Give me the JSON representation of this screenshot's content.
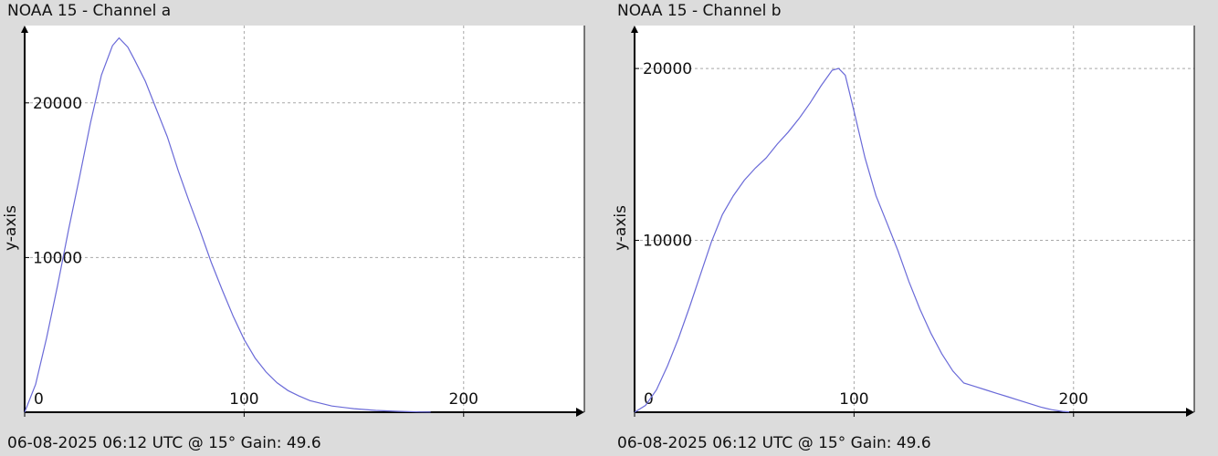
{
  "panels": [
    {
      "title": "NOAA 15 - Channel a",
      "footer": "06-08-2025 06:12 UTC @ 15° Gain: 49.6"
    },
    {
      "title": "NOAA 15 - Channel b",
      "footer": "06-08-2025 06:12 UTC @ 15° Gain: 49.6"
    }
  ],
  "colors": {
    "background": "#dcdcdc",
    "plot_area": "#ffffff",
    "line": "#6a6ad8",
    "grid": "#a8a8a8",
    "axis": "#000000"
  },
  "chart_data": [
    {
      "type": "line",
      "title": "NOAA 15 - Channel a",
      "xlabel": "",
      "ylabel": "y-axis",
      "xlim": [
        0,
        255
      ],
      "ylim": [
        0,
        25000
      ],
      "grid": true,
      "x_ticks": [
        0,
        100,
        200
      ],
      "y_ticks": [
        10000,
        20000
      ],
      "series": [
        {
          "x": [
            0,
            5,
            10,
            15,
            20,
            25,
            30,
            35,
            40,
            43,
            47,
            50,
            55,
            60,
            65,
            70,
            75,
            80,
            85,
            90,
            95,
            100,
            105,
            110,
            115,
            120,
            125,
            130,
            140,
            150,
            160,
            170,
            180,
            185
          ],
          "y": [
            0,
            1800,
            4800,
            8200,
            11800,
            15200,
            18700,
            21800,
            23700,
            24200,
            23600,
            22800,
            21400,
            19600,
            17800,
            15600,
            13600,
            11700,
            9700,
            7900,
            6200,
            4700,
            3500,
            2600,
            1900,
            1400,
            1050,
            750,
            400,
            230,
            120,
            60,
            20,
            10
          ]
        }
      ]
    },
    {
      "type": "line",
      "title": "NOAA 15 - Channel b",
      "xlabel": "",
      "ylabel": "y-axis",
      "xlim": [
        0,
        255
      ],
      "ylim": [
        0,
        22500
      ],
      "grid": true,
      "x_ticks": [
        0,
        100,
        200
      ],
      "y_ticks": [
        10000,
        20000
      ],
      "series": [
        {
          "x": [
            0,
            5,
            10,
            15,
            20,
            25,
            30,
            35,
            40,
            45,
            50,
            55,
            60,
            65,
            70,
            75,
            80,
            85,
            90,
            93,
            96,
            100,
            105,
            110,
            115,
            120,
            125,
            130,
            135,
            140,
            145,
            150,
            155,
            160,
            165,
            170,
            175,
            180,
            185,
            190,
            195,
            198
          ],
          "y": [
            0,
            400,
            1300,
            2700,
            4300,
            6100,
            8000,
            9900,
            11500,
            12600,
            13500,
            14200,
            14800,
            15600,
            16300,
            17100,
            18000,
            19000,
            19900,
            20000,
            19600,
            17500,
            14800,
            12600,
            11000,
            9400,
            7600,
            6000,
            4600,
            3400,
            2400,
            1700,
            1500,
            1300,
            1100,
            900,
            700,
            500,
            300,
            150,
            50,
            20
          ]
        }
      ]
    }
  ]
}
